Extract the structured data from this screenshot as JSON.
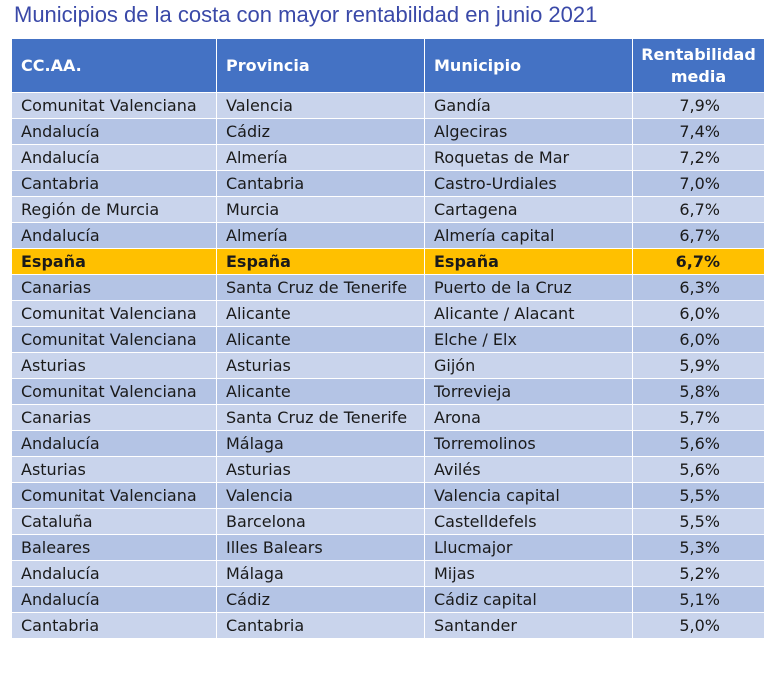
{
  "title": "Municipios de la costa con mayor rentabilidad en junio 2021",
  "table": {
    "headers": [
      "CC.AA.",
      "Provincia",
      "Municipio",
      "Rentabilidad media"
    ],
    "rows": [
      {
        "ccaa": "Comunitat Valenciana",
        "provincia": "Valencia",
        "municipio": "Gandía",
        "rentabilidad": "7,9%"
      },
      {
        "ccaa": "Andalucía",
        "provincia": "Cádiz",
        "municipio": "Algeciras",
        "rentabilidad": "7,4%"
      },
      {
        "ccaa": "Andalucía",
        "provincia": "Almería",
        "municipio": "Roquetas de Mar",
        "rentabilidad": "7,2%"
      },
      {
        "ccaa": "Cantabria",
        "provincia": "Cantabria",
        "municipio": "Castro-Urdiales",
        "rentabilidad": "7,0%"
      },
      {
        "ccaa": "Región de Murcia",
        "provincia": "Murcia",
        "municipio": "Cartagena",
        "rentabilidad": "6,7%"
      },
      {
        "ccaa": "Andalucía",
        "provincia": "Almería",
        "municipio": "Almería capital",
        "rentabilidad": "6,7%"
      },
      {
        "ccaa": "España",
        "provincia": "España",
        "municipio": "España",
        "rentabilidad": "6,7%",
        "highlight": true
      },
      {
        "ccaa": "Canarias",
        "provincia": "Santa Cruz de Tenerife",
        "municipio": "Puerto de la Cruz",
        "rentabilidad": "6,3%",
        "tall": true
      },
      {
        "ccaa": "Comunitat Valenciana",
        "provincia": "Alicante",
        "municipio": "Alicante / Alacant",
        "rentabilidad": "6,0%"
      },
      {
        "ccaa": "Comunitat Valenciana",
        "provincia": "Alicante",
        "municipio": "Elche / Elx",
        "rentabilidad": "6,0%"
      },
      {
        "ccaa": "Asturias",
        "provincia": "Asturias",
        "municipio": "Gijón",
        "rentabilidad": "5,9%"
      },
      {
        "ccaa": "Comunitat Valenciana",
        "provincia": "Alicante",
        "municipio": "Torrevieja",
        "rentabilidad": "5,8%"
      },
      {
        "ccaa": "Canarias",
        "provincia": "Santa Cruz de Tenerife",
        "municipio": "Arona",
        "rentabilidad": "5,7%",
        "tall": true
      },
      {
        "ccaa": "Andalucía",
        "provincia": "Málaga",
        "municipio": "Torremolinos",
        "rentabilidad": "5,6%"
      },
      {
        "ccaa": "Asturias",
        "provincia": "Asturias",
        "municipio": "Avilés",
        "rentabilidad": "5,6%"
      },
      {
        "ccaa": "Comunitat Valenciana",
        "provincia": "Valencia",
        "municipio": "Valencia capital",
        "rentabilidad": "5,5%"
      },
      {
        "ccaa": "Cataluña",
        "provincia": "Barcelona",
        "municipio": "Castelldefels",
        "rentabilidad": "5,5%"
      },
      {
        "ccaa": "Baleares",
        "provincia": "Illes Balears",
        "municipio": "Llucmajor",
        "rentabilidad": "5,3%"
      },
      {
        "ccaa": "Andalucía",
        "provincia": "Málaga",
        "municipio": "Mijas",
        "rentabilidad": "5,2%"
      },
      {
        "ccaa": "Andalucía",
        "provincia": "Cádiz",
        "municipio": "Cádiz capital",
        "rentabilidad": "5,1%"
      },
      {
        "ccaa": "Cantabria",
        "provincia": "Cantabria",
        "municipio": "Santander",
        "rentabilidad": "5,0%"
      }
    ]
  }
}
